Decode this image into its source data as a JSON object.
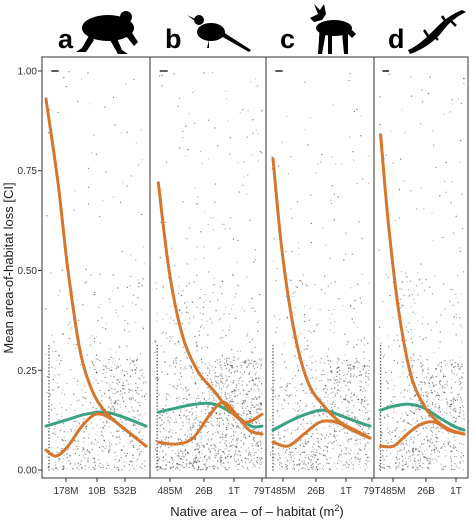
{
  "chart_data": {
    "type": "scatter",
    "ylabel": "Mean area-of-habitat loss [CI]",
    "xlabel_main": "Native area – of – habitat (m",
    "xlabel_sup": "2",
    "xlabel_close": ")",
    "y_ticks": [
      "0.00",
      "0.25",
      "0.50",
      "0.75",
      "1.00"
    ],
    "ylim": [
      -0.02,
      1.035
    ],
    "x_scale": "log",
    "grid": false,
    "colors": {
      "orange": "#d6762c",
      "green": "#3aa386",
      "points": "#000000"
    },
    "panels": [
      {
        "letter": "a",
        "silhouette": "frog-icon",
        "x_ticks": [
          "178M",
          "10B",
          "532B"
        ],
        "orange_upper": [
          [
            0,
            0.93
          ],
          [
            0.12,
            0.72
          ],
          [
            0.22,
            0.5
          ],
          [
            0.34,
            0.3
          ],
          [
            0.46,
            0.2
          ],
          [
            0.58,
            0.15
          ],
          [
            0.7,
            0.12
          ],
          [
            0.85,
            0.09
          ],
          [
            1,
            0.06
          ]
        ],
        "orange_lower": [
          [
            0,
            0.05
          ],
          [
            0.1,
            0.035
          ],
          [
            0.22,
            0.06
          ],
          [
            0.36,
            0.11
          ],
          [
            0.5,
            0.14
          ],
          [
            0.64,
            0.13
          ],
          [
            0.8,
            0.1
          ],
          [
            1,
            0.06
          ]
        ],
        "green": [
          [
            0,
            0.11
          ],
          [
            0.2,
            0.125
          ],
          [
            0.4,
            0.14
          ],
          [
            0.6,
            0.145
          ],
          [
            0.8,
            0.13
          ],
          [
            1,
            0.11
          ]
        ]
      },
      {
        "letter": "b",
        "silhouette": "bird-icon",
        "x_ticks": [
          "485M",
          "26B",
          "1T",
          "79T"
        ],
        "orange_upper": [
          [
            0.04,
            0.72
          ],
          [
            0.14,
            0.5
          ],
          [
            0.26,
            0.34
          ],
          [
            0.4,
            0.25
          ],
          [
            0.55,
            0.2
          ],
          [
            0.7,
            0.15
          ],
          [
            0.85,
            0.12
          ],
          [
            1,
            0.14
          ]
        ],
        "orange_lower": [
          [
            0.04,
            0.07
          ],
          [
            0.2,
            0.065
          ],
          [
            0.36,
            0.08
          ],
          [
            0.52,
            0.14
          ],
          [
            0.64,
            0.17
          ],
          [
            0.76,
            0.14
          ],
          [
            0.88,
            0.1
          ],
          [
            1,
            0.09
          ]
        ],
        "green": [
          [
            0.04,
            0.145
          ],
          [
            0.2,
            0.155
          ],
          [
            0.38,
            0.165
          ],
          [
            0.56,
            0.165
          ],
          [
            0.74,
            0.14
          ],
          [
            0.9,
            0.11
          ],
          [
            1,
            0.11
          ]
        ]
      },
      {
        "letter": "c",
        "silhouette": "dog-icon",
        "x_ticks": [
          "485M",
          "26B",
          "1T",
          "79T"
        ],
        "orange_upper": [
          [
            0.03,
            0.78
          ],
          [
            0.12,
            0.55
          ],
          [
            0.24,
            0.35
          ],
          [
            0.38,
            0.22
          ],
          [
            0.54,
            0.16
          ],
          [
            0.7,
            0.12
          ],
          [
            0.85,
            0.1
          ],
          [
            1,
            0.08
          ]
        ],
        "orange_lower": [
          [
            0.03,
            0.07
          ],
          [
            0.18,
            0.06
          ],
          [
            0.34,
            0.09
          ],
          [
            0.5,
            0.12
          ],
          [
            0.66,
            0.12
          ],
          [
            0.82,
            0.1
          ],
          [
            1,
            0.08
          ]
        ],
        "green": [
          [
            0.03,
            0.1
          ],
          [
            0.18,
            0.12
          ],
          [
            0.36,
            0.14
          ],
          [
            0.54,
            0.15
          ],
          [
            0.72,
            0.135
          ],
          [
            0.88,
            0.12
          ],
          [
            1,
            0.11
          ]
        ]
      },
      {
        "letter": "d",
        "silhouette": "lizard-icon",
        "x_ticks": [
          "485M",
          "26B",
          "1T"
        ],
        "orange_upper": [
          [
            0.03,
            0.84
          ],
          [
            0.12,
            0.62
          ],
          [
            0.24,
            0.4
          ],
          [
            0.38,
            0.24
          ],
          [
            0.54,
            0.16
          ],
          [
            0.7,
            0.12
          ],
          [
            0.85,
            0.1
          ],
          [
            1,
            0.09
          ]
        ],
        "orange_lower": [
          [
            0.03,
            0.06
          ],
          [
            0.18,
            0.06
          ],
          [
            0.34,
            0.09
          ],
          [
            0.5,
            0.115
          ],
          [
            0.66,
            0.12
          ],
          [
            0.82,
            0.1
          ],
          [
            1,
            0.09
          ]
        ],
        "green": [
          [
            0.03,
            0.15
          ],
          [
            0.18,
            0.16
          ],
          [
            0.36,
            0.165
          ],
          [
            0.54,
            0.155
          ],
          [
            0.72,
            0.13
          ],
          [
            0.88,
            0.11
          ],
          [
            1,
            0.1
          ]
        ]
      }
    ]
  }
}
